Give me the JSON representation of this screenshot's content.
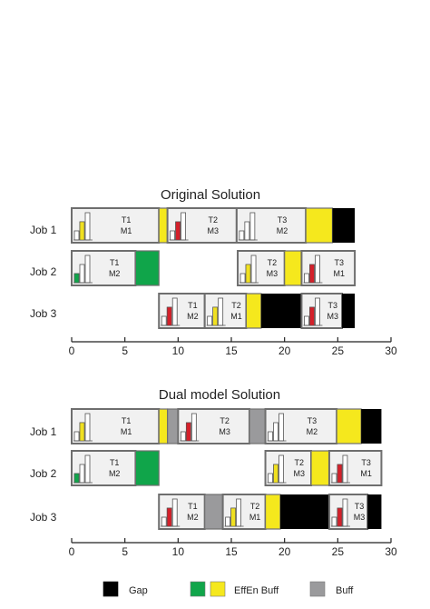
{
  "colors": {
    "gap": "#000000",
    "effen_green": "#10a54a",
    "effen_yellow": "#f5e81d",
    "buff": "#9a9a9c",
    "task_fill": "#f1f1f1",
    "task_border": "#6e6e6e",
    "mini_yellow": "#f0e020",
    "mini_red": "#d4202a",
    "mini_green": "#10a54a"
  },
  "axis": {
    "min": 0,
    "max": 30,
    "ticks": [
      "0",
      "5",
      "10",
      "15",
      "20",
      "25",
      "30"
    ]
  },
  "charts": [
    {
      "title": "Original Solution",
      "jobs": [
        {
          "label": "Job 1",
          "segments": [
            {
              "kind": "task",
              "start": 0,
              "end": 8.2,
              "t": "T1",
              "m": "M1",
              "mini": "yellow"
            },
            {
              "kind": "effen_yellow",
              "start": 8.2,
              "end": 9.0
            },
            {
              "kind": "task",
              "start": 9.0,
              "end": 15.5,
              "t": "T2",
              "m": "M3",
              "mini": "red"
            },
            {
              "kind": "task",
              "start": 15.5,
              "end": 22.0,
              "t": "T3",
              "m": "M2",
              "mini": "none"
            },
            {
              "kind": "effen_yellow",
              "start": 22.0,
              "end": 24.5
            },
            {
              "kind": "gap",
              "start": 24.5,
              "end": 26.6
            }
          ]
        },
        {
          "label": "Job 2",
          "segments": [
            {
              "kind": "task",
              "start": 0,
              "end": 6.0,
              "t": "T1",
              "m": "M2",
              "mini": "green"
            },
            {
              "kind": "effen_green",
              "start": 6.0,
              "end": 8.2
            },
            {
              "kind": "task",
              "start": 15.6,
              "end": 20.0,
              "t": "T2",
              "m": "M3",
              "mini": "yellow"
            },
            {
              "kind": "effen_yellow",
              "start": 20.0,
              "end": 21.6
            },
            {
              "kind": "task",
              "start": 21.6,
              "end": 26.6,
              "t": "T3",
              "m": "M1",
              "mini": "red"
            }
          ]
        },
        {
          "label": "Job 3",
          "segments": [
            {
              "kind": "task",
              "start": 8.2,
              "end": 12.5,
              "t": "T1",
              "m": "M2",
              "mini": "red"
            },
            {
              "kind": "task",
              "start": 12.5,
              "end": 16.4,
              "t": "T2",
              "m": "M1",
              "mini": "yellow"
            },
            {
              "kind": "effen_yellow",
              "start": 16.4,
              "end": 17.8
            },
            {
              "kind": "gap",
              "start": 17.8,
              "end": 21.6
            },
            {
              "kind": "task",
              "start": 21.6,
              "end": 25.4,
              "t": "T3",
              "m": "M3",
              "mini": "red"
            },
            {
              "kind": "gap",
              "start": 25.4,
              "end": 26.6
            }
          ]
        }
      ]
    },
    {
      "title": "Dual model Solution",
      "jobs": [
        {
          "label": "Job 1",
          "segments": [
            {
              "kind": "task",
              "start": 0,
              "end": 8.2,
              "t": "T1",
              "m": "M1",
              "mini": "yellow"
            },
            {
              "kind": "effen_yellow",
              "start": 8.2,
              "end": 9.0
            },
            {
              "kind": "buff",
              "start": 9.0,
              "end": 10.0
            },
            {
              "kind": "task",
              "start": 10.0,
              "end": 16.7,
              "t": "T2",
              "m": "M3",
              "mini": "red"
            },
            {
              "kind": "buff",
              "start": 16.7,
              "end": 18.2
            },
            {
              "kind": "task",
              "start": 18.2,
              "end": 24.9,
              "t": "T3",
              "m": "M2",
              "mini": "none"
            },
            {
              "kind": "effen_yellow",
              "start": 24.9,
              "end": 27.2
            },
            {
              "kind": "gap",
              "start": 27.2,
              "end": 29.1
            }
          ]
        },
        {
          "label": "Job 2",
          "segments": [
            {
              "kind": "task",
              "start": 0,
              "end": 6.0,
              "t": "T1",
              "m": "M2",
              "mini": "green"
            },
            {
              "kind": "effen_green",
              "start": 6.0,
              "end": 8.2
            },
            {
              "kind": "task",
              "start": 18.2,
              "end": 22.5,
              "t": "T2",
              "m": "M3",
              "mini": "yellow"
            },
            {
              "kind": "effen_yellow",
              "start": 22.5,
              "end": 24.2
            },
            {
              "kind": "task",
              "start": 24.2,
              "end": 29.1,
              "t": "T3",
              "m": "M1",
              "mini": "red"
            }
          ]
        },
        {
          "label": "Job 3",
          "segments": [
            {
              "kind": "task",
              "start": 8.2,
              "end": 12.5,
              "t": "T1",
              "m": "M2",
              "mini": "red"
            },
            {
              "kind": "buff",
              "start": 12.5,
              "end": 14.2
            },
            {
              "kind": "task",
              "start": 14.2,
              "end": 18.2,
              "t": "T2",
              "m": "M1",
              "mini": "yellow"
            },
            {
              "kind": "effen_yellow",
              "start": 18.2,
              "end": 19.6
            },
            {
              "kind": "gap",
              "start": 19.6,
              "end": 24.2
            },
            {
              "kind": "task",
              "start": 24.2,
              "end": 27.8,
              "t": "T3",
              "m": "M3",
              "mini": "red"
            },
            {
              "kind": "gap",
              "start": 27.8,
              "end": 29.1
            }
          ]
        }
      ]
    }
  ],
  "legend": [
    {
      "label": "Gap",
      "swatches": [
        "gap"
      ]
    },
    {
      "label": "EffEn Buff",
      "swatches": [
        "effen_green",
        "effen_yellow"
      ]
    },
    {
      "label": "Buff",
      "swatches": [
        "buff"
      ]
    }
  ]
}
